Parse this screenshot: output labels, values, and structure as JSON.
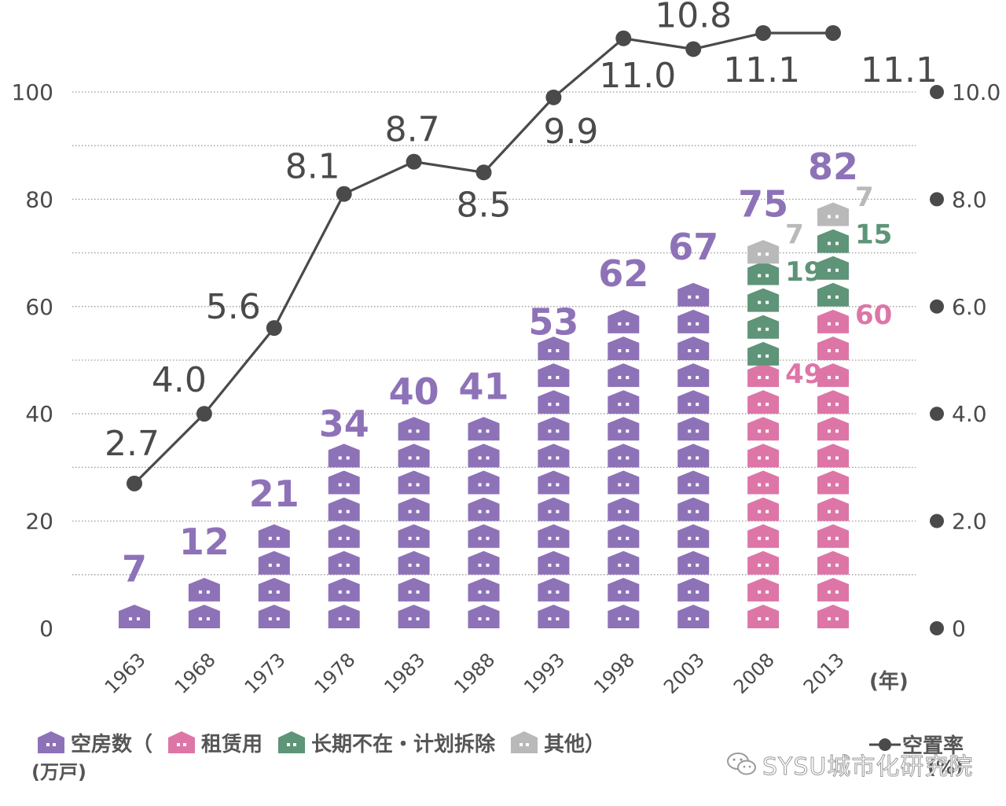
{
  "chart_data": {
    "type": "bar+line",
    "categories": [
      "1963",
      "1968",
      "1973",
      "1978",
      "1983",
      "1988",
      "1993",
      "1998",
      "2003",
      "2008",
      "2013"
    ],
    "vacant_total": [
      7,
      12,
      21,
      34,
      40,
      41,
      53,
      62,
      67,
      75,
      82
    ],
    "breakdown": {
      "2008": {
        "rental": 49,
        "long_absent": 19,
        "other": 7
      },
      "2013": {
        "rental": 60,
        "long_absent": 15,
        "other": 7
      }
    },
    "vacancy_rate": [
      2.7,
      4.0,
      5.6,
      8.1,
      8.7,
      8.5,
      9.9,
      11.0,
      10.8,
      11.1,
      11.1
    ],
    "rate_labels": [
      "2.7",
      "4.0",
      "5.6",
      "8.1",
      "8.7",
      "8.5",
      "9.9",
      "11.0",
      "10.8",
      "11.1",
      "11.1"
    ],
    "left_axis": {
      "ticks": [
        "0",
        "20",
        "40",
        "60",
        "80",
        "100"
      ],
      "range": [
        0,
        100
      ]
    },
    "right_axis": {
      "ticks": [
        "0",
        "2.0",
        "4.0",
        "6.0",
        "8.0",
        "10.0"
      ],
      "range": [
        0,
        10
      ]
    },
    "x_unit": "(年)",
    "grid": "dotted horizontal every 10"
  },
  "colors": {
    "vacant": "#8e72b8",
    "rental": "#dd76a7",
    "long_absent": "#5e9478",
    "other": "#b9b9b9",
    "line": "#4a4a4a",
    "label_gray": "#4a4a4a"
  },
  "legend": {
    "vacant": "空房数（",
    "rental": "租赁用",
    "long_absent": "长期不在・计划拆除",
    "other": "其他）",
    "unit_left": "(万戸)",
    "line": "空置率",
    "unit_right": "(%)"
  },
  "watermark": "SYSU城市化研究院"
}
